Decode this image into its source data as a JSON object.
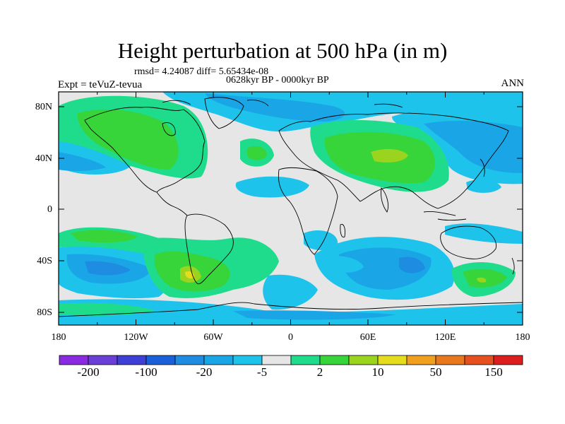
{
  "title": "Height perturbation at 500 hPa (in m)",
  "stats": "rmsd= 4.24087 diff= 5.65434e-08",
  "period": "0628kyr BP - 0000kyr BP",
  "experiment": "Expt = teVuZ-tevua",
  "season": "ANN",
  "axes": {
    "x_ticks": [
      "180",
      "120W",
      "60W",
      "0",
      "60E",
      "120E",
      "180"
    ],
    "y_ticks": [
      "80N",
      "40N",
      "0",
      "40S",
      "80S"
    ]
  },
  "colorbar": {
    "colors": [
      "#8a2be2",
      "#6a3fd8",
      "#3d3fd6",
      "#1a60d8",
      "#1e8ce0",
      "#1aa6e6",
      "#1ec3eb",
      "#e6e6e6",
      "#1fdc8c",
      "#37d43a",
      "#9bd41e",
      "#e6dc1e",
      "#f0a01e",
      "#e8781e",
      "#e6501e",
      "#dc1e1e"
    ],
    "labels": [
      "-200",
      "-100",
      "-20",
      "-5",
      "2",
      "10",
      "50",
      "150"
    ]
  },
  "legend_colors": {
    "neutral": "#e6e6e6",
    "light_blue": "#1ec3eb",
    "mid_blue": "#1aa6e6",
    "blue": "#1e8ce0",
    "teal_green": "#1fdc8c",
    "green": "#37d43a",
    "yellow_green": "#9bd41e",
    "yellow": "#e6dc1e"
  }
}
